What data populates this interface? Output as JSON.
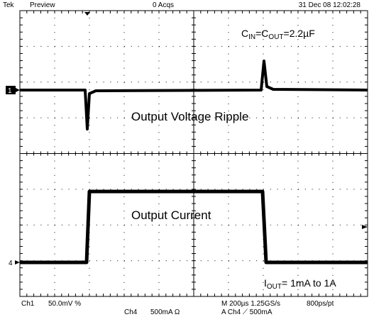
{
  "header": {
    "brand": "Tek",
    "mode": "Preview",
    "acquisitions": "0 Acqs",
    "timestamp": "31 Dec 08 12:02:28"
  },
  "annotations": {
    "capacitance": {
      "c1": "C",
      "sub1": "IN",
      "c2": "=C",
      "sub2": "OUT",
      "value": "=2.2µF"
    },
    "voltage_label": "Output Voltage Ripple",
    "current_label": "Output Current",
    "load": {
      "i": "I",
      "sub": "OUT",
      "value": "= 1mA to 1A"
    }
  },
  "markers": {
    "ch1": "1",
    "ch4": "4"
  },
  "footer": {
    "ch1": "Ch1",
    "ch1_scale": "50.0mV %",
    "ch4": "Ch4",
    "ch4_scale": "500mA Ω",
    "timebase": "M 200µs 1.25GS/s",
    "resolution": "800ps/pt",
    "trigger": "A Ch4 ⟋ 500mA"
  }
}
